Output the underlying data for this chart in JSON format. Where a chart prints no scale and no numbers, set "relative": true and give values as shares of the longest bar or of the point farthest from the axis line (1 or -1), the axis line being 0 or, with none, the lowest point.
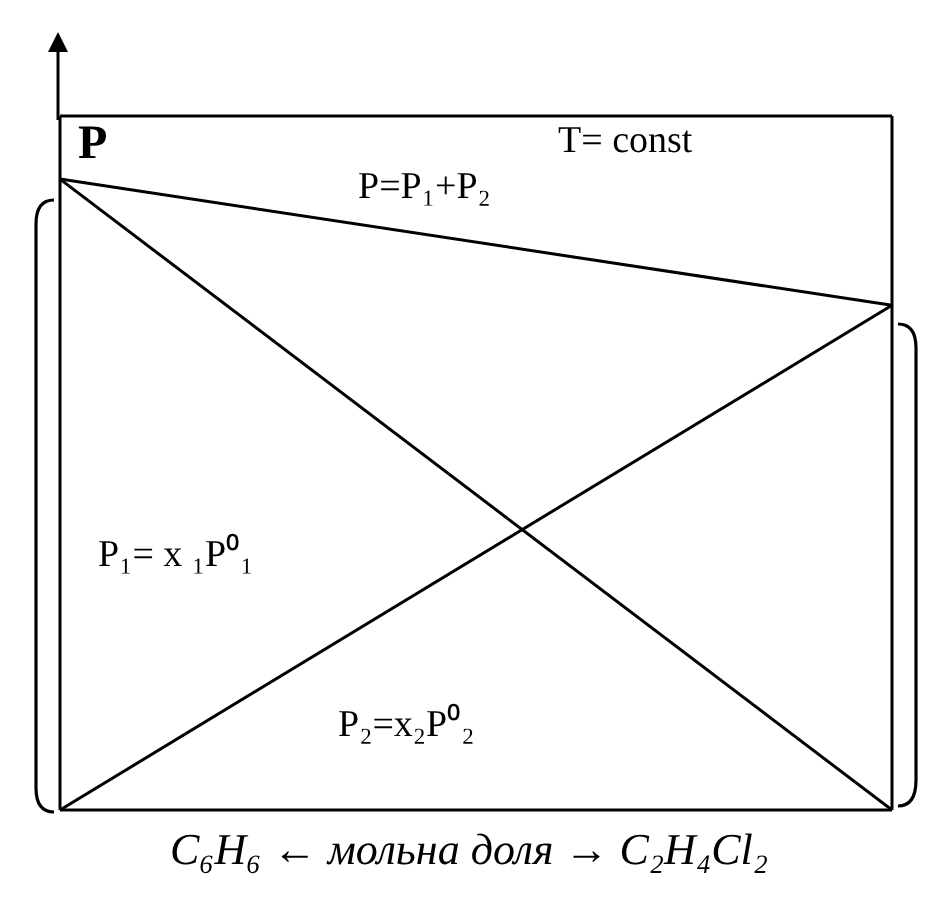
{
  "chart_data": {
    "type": "line",
    "relative": true,
    "ylabel": "P",
    "xlabel": "C₆H₆ ← мольна доля → C₂H₄Cl₂",
    "categories": [
      null,
      null
    ],
    "series": [
      {
        "color": "#000000",
        "values": [
          1,
          0.8
        ]
      },
      {
        "color": "#000000",
        "values": [
          1,
          0
        ]
      },
      {
        "color": "#000000",
        "values": [
          0,
          0.8
        ]
      }
    ],
    "annotations": [
      "T= const",
      "P=P₁+P₂",
      "P₁= x ₁P⁰₁",
      "P₂=x₂P⁰₂"
    ],
    "marker": "none",
    "line_style": "solid"
  }
}
